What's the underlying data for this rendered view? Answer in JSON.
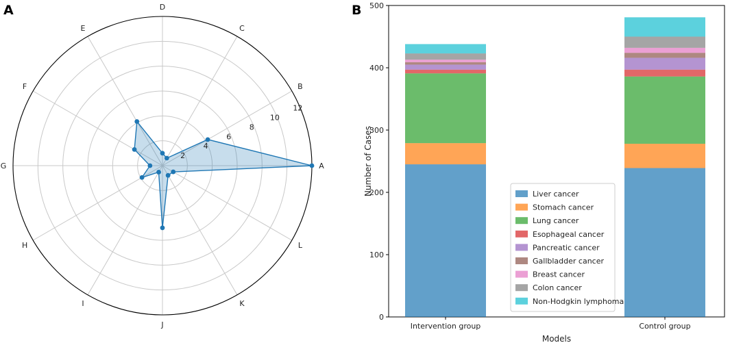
{
  "panels": {
    "a_letter": "A",
    "b_letter": "B"
  },
  "chart_data": [
    {
      "type": "radar",
      "panel": "A",
      "categories": [
        "A",
        "B",
        "C",
        "D",
        "E",
        "F",
        "G",
        "H",
        "I",
        "J",
        "K",
        "L"
      ],
      "values": [
        12,
        4.2,
        0.7,
        1.0,
        4.1,
        2.6,
        1.0,
        1.9,
        0.6,
        5.0,
        0.9,
        1.0
      ],
      "rlim": [
        0,
        12
      ],
      "rticks": [
        2,
        4,
        6,
        8,
        10,
        12
      ],
      "color": "#1f77b4",
      "fill": "#1f77b4"
    },
    {
      "type": "bar",
      "stacked": true,
      "panel": "B",
      "categories": [
        "Intervention group",
        "Control group"
      ],
      "xlabel": "Models",
      "ylabel": "Number of Cases",
      "ylim": [
        0,
        500
      ],
      "yticks": [
        0,
        100,
        200,
        300,
        400,
        500
      ],
      "legend_position": "lower-center",
      "series": [
        {
          "name": "Liver cancer",
          "values": [
            245,
            239
          ],
          "color": "#1f77b4"
        },
        {
          "name": "Stomach cancer",
          "values": [
            34,
            39
          ],
          "color": "#ff7f0e"
        },
        {
          "name": "Lung cancer",
          "values": [
            112,
            108
          ],
          "color": "#2ca02c"
        },
        {
          "name": "Esophageal cancer",
          "values": [
            6,
            11
          ],
          "color": "#d62728"
        },
        {
          "name": "Pancreatic cancer",
          "values": [
            8,
            19
          ],
          "color": "#9467bd"
        },
        {
          "name": "Gallbladder cancer",
          "values": [
            4,
            8
          ],
          "color": "#8c564b"
        },
        {
          "name": "Breast cancer",
          "values": [
            4,
            8
          ],
          "color": "#e377c2"
        },
        {
          "name": "Colon cancer",
          "values": [
            10,
            18
          ],
          "color": "#7f7f7f"
        },
        {
          "name": "Non-Hodgkin lymphoma",
          "values": [
            15,
            31
          ],
          "color": "#17becf"
        }
      ]
    }
  ]
}
